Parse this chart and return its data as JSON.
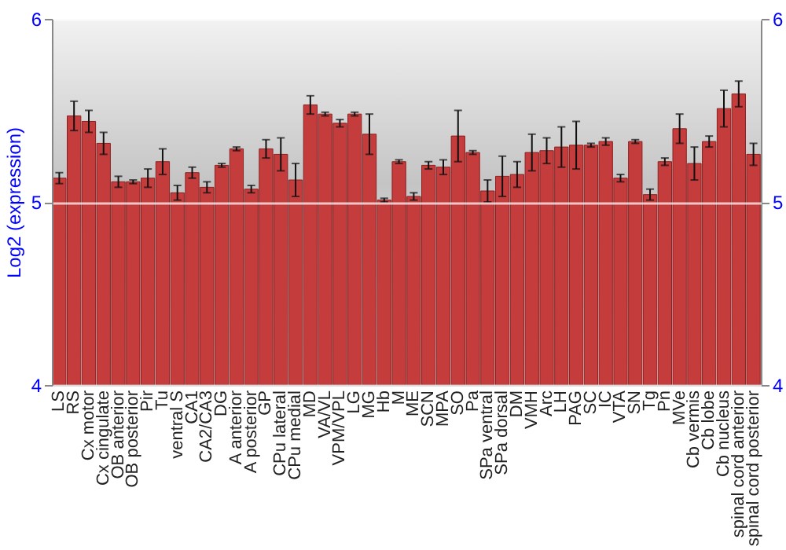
{
  "chart_data": {
    "type": "bar",
    "ylabel": "Log2 (expression)",
    "categories": [
      "LS",
      "RS",
      "Cx motor",
      "Cx cingulate",
      "OB anterior",
      "OB posterior",
      "Pir",
      "Tu",
      "ventral S",
      "CA1",
      "CA2/CA3",
      "DG",
      "A anterior",
      "A posterior",
      "GP",
      "CPu lateral",
      "CPu medial",
      "MD",
      "VA/VL",
      "VPM/VPL",
      "LG",
      "MG",
      "Hb",
      "M",
      "ME",
      "SCN",
      "MPA",
      "SO",
      "Pa",
      "SPa ventral",
      "SPa dorsal",
      "DM",
      "VMH",
      "Arc",
      "LH",
      "PAG",
      "SC",
      "IC",
      "VTA",
      "SN",
      "Tg",
      "Pn",
      "MVe",
      "Cb vermis",
      "Cb lobe",
      "Cb nucleus",
      "spinal cord anterior",
      "spinal cord posterior"
    ],
    "series": [
      {
        "color": "#c43c3c",
        "values": [
          5.13,
          5.47,
          5.44,
          5.32,
          5.11,
          5.11,
          5.13,
          5.22,
          5.05,
          5.16,
          5.08,
          5.2,
          5.29,
          5.07,
          5.29,
          5.26,
          5.12,
          5.53,
          5.48,
          5.43,
          5.48,
          5.37,
          5.01,
          5.22,
          5.03,
          5.2,
          5.19,
          5.36,
          5.27,
          5.06,
          5.14,
          5.15,
          5.27,
          5.28,
          5.3,
          5.31,
          5.31,
          5.33,
          5.13,
          5.33,
          5.04,
          5.22,
          5.4,
          5.21,
          5.33,
          5.51,
          5.59,
          5.26
        ],
        "errors": [
          0.03,
          0.08,
          0.06,
          0.06,
          0.03,
          0.01,
          0.05,
          0.07,
          0.04,
          0.03,
          0.03,
          0.01,
          0.01,
          0.02,
          0.05,
          0.09,
          0.09,
          0.05,
          0.01,
          0.02,
          0.01,
          0.11,
          0.01,
          0.01,
          0.02,
          0.02,
          0.04,
          0.14,
          0.01,
          0.06,
          0.11,
          0.07,
          0.1,
          0.07,
          0.11,
          0.13,
          0.01,
          0.02,
          0.02,
          0.01,
          0.03,
          0.02,
          0.08,
          0.09,
          0.03,
          0.1,
          0.07,
          0.06
        ]
      }
    ],
    "ylim": [
      4,
      6
    ],
    "yticks": [
      4,
      5,
      6
    ],
    "y2lim": [
      4,
      6
    ],
    "y2ticks": [
      4,
      5,
      6
    ],
    "grid": "y"
  }
}
